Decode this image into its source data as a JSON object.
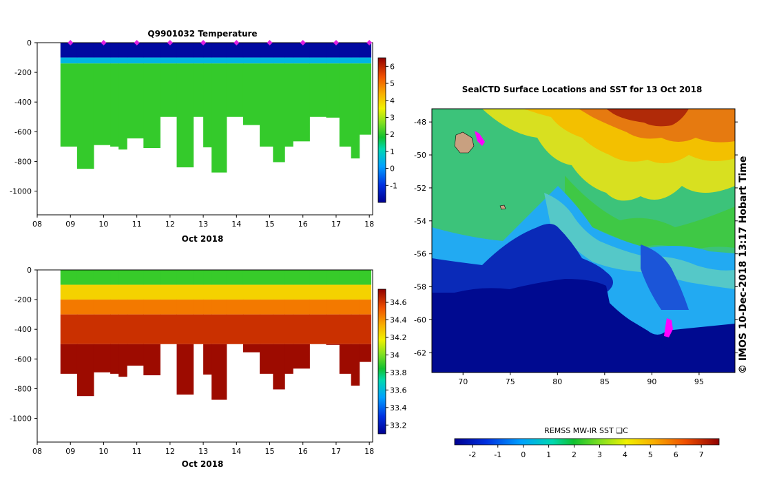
{
  "chart_data": [
    {
      "type": "heatmap",
      "title": "Q9901032  Temperature",
      "xlabel": "Oct 2018",
      "ylabel": "",
      "x_ticks": [
        "08",
        "09",
        "10",
        "11",
        "12",
        "13",
        "14",
        "15",
        "16",
        "17",
        "18"
      ],
      "xlim": [
        8,
        18.1
      ],
      "y_ticks": [
        "0",
        "-200",
        "-400",
        "-600",
        "-800",
        "-1000"
      ],
      "ylim": [
        -1160,
        0
      ],
      "colorbar": {
        "ticks": [
          "-1",
          "0",
          "1",
          "2",
          "3",
          "4",
          "5",
          "6"
        ],
        "range": [
          -2,
          6.5
        ]
      },
      "profile_times": [
        8.7,
        9.2,
        9.7,
        10.2,
        10.45,
        10.7,
        11.2,
        11.7,
        12.2,
        12.7,
        13.0,
        13.25,
        13.7,
        14.2,
        14.7,
        15.1,
        15.45,
        15.7,
        16.2,
        16.7,
        17.1,
        17.45,
        17.7
      ],
      "profile_max_depth": [
        -700,
        -850,
        -690,
        -700,
        -720,
        -645,
        -710,
        -500,
        -840,
        -500,
        -705,
        -875,
        -500,
        -555,
        -700,
        -805,
        -700,
        -665,
        -500,
        -505,
        -700,
        -780,
        -620
      ],
      "profiles_surface_markers_days": [
        9,
        10,
        11,
        12,
        13,
        14,
        15,
        16,
        17,
        18
      ],
      "temperature_layers": [
        {
          "from_depth": 0,
          "to_depth": -100,
          "value": -1.8
        },
        {
          "from_depth": -100,
          "to_depth": -140,
          "value": 0.5
        },
        {
          "from_depth": -140,
          "to_depth": -1160,
          "value": 2.1
        }
      ]
    },
    {
      "type": "heatmap",
      "title": "",
      "xlabel": "Oct 2018",
      "ylabel": "",
      "x_ticks": [
        "08",
        "09",
        "10",
        "11",
        "12",
        "13",
        "14",
        "15",
        "16",
        "17",
        "18"
      ],
      "xlim": [
        8,
        18.1
      ],
      "y_ticks": [
        "0",
        "-200",
        "-400",
        "-600",
        "-800",
        "-1000"
      ],
      "ylim": [
        -1160,
        0
      ],
      "colorbar": {
        "ticks": [
          "33.2",
          "33.4",
          "33.6",
          "33.8",
          "34",
          "34.2",
          "34.4",
          "34.6"
        ],
        "range": [
          33.1,
          34.75
        ]
      },
      "salinity_layers": [
        {
          "from_depth": 0,
          "to_depth": -100,
          "value": 33.9
        },
        {
          "from_depth": -100,
          "to_depth": -200,
          "value": 34.25
        },
        {
          "from_depth": -200,
          "to_depth": -300,
          "value": 34.45
        },
        {
          "from_depth": -300,
          "to_depth": -500,
          "value": 34.62
        },
        {
          "from_depth": -500,
          "to_depth": -1160,
          "value": 34.72
        }
      ]
    },
    {
      "type": "heatmap",
      "title": "SealCTD Surface Locations and SST for 13 Oct 2018",
      "xlabel": "",
      "ylabel": "",
      "x_ticks": [
        "70",
        "75",
        "80",
        "85",
        "90",
        "95"
      ],
      "xlim": [
        66.7,
        98.8
      ],
      "y_ticks": [
        "-48",
        "-50",
        "-52",
        "-54",
        "-56",
        "-58",
        "-60",
        "-62"
      ],
      "ylim": [
        -63.2,
        -47.2
      ],
      "colorbar": {
        "label": "REMSS MW-IR SST ❑C",
        "ticks": [
          "-2",
          "-1",
          "0",
          "1",
          "2",
          "3",
          "4",
          "5",
          "6",
          "7"
        ],
        "range": [
          -2.7,
          7.7
        ]
      },
      "surface_locations": [
        {
          "lon": 71.2,
          "lat": -48.6
        },
        {
          "lon": 71.3,
          "lat": -48.9
        },
        {
          "lon": 91.2,
          "lat": -60.2
        },
        {
          "lon": 91.0,
          "lat": -60.6
        }
      ],
      "islands": [
        {
          "name": "",
          "lon": 69.5,
          "lat": -49.3
        },
        {
          "name": "",
          "lon": 73.5,
          "lat": -53.1
        }
      ]
    }
  ],
  "side_label": "©  IMOS 10-Dec-2018 13:17 Hobart Time"
}
